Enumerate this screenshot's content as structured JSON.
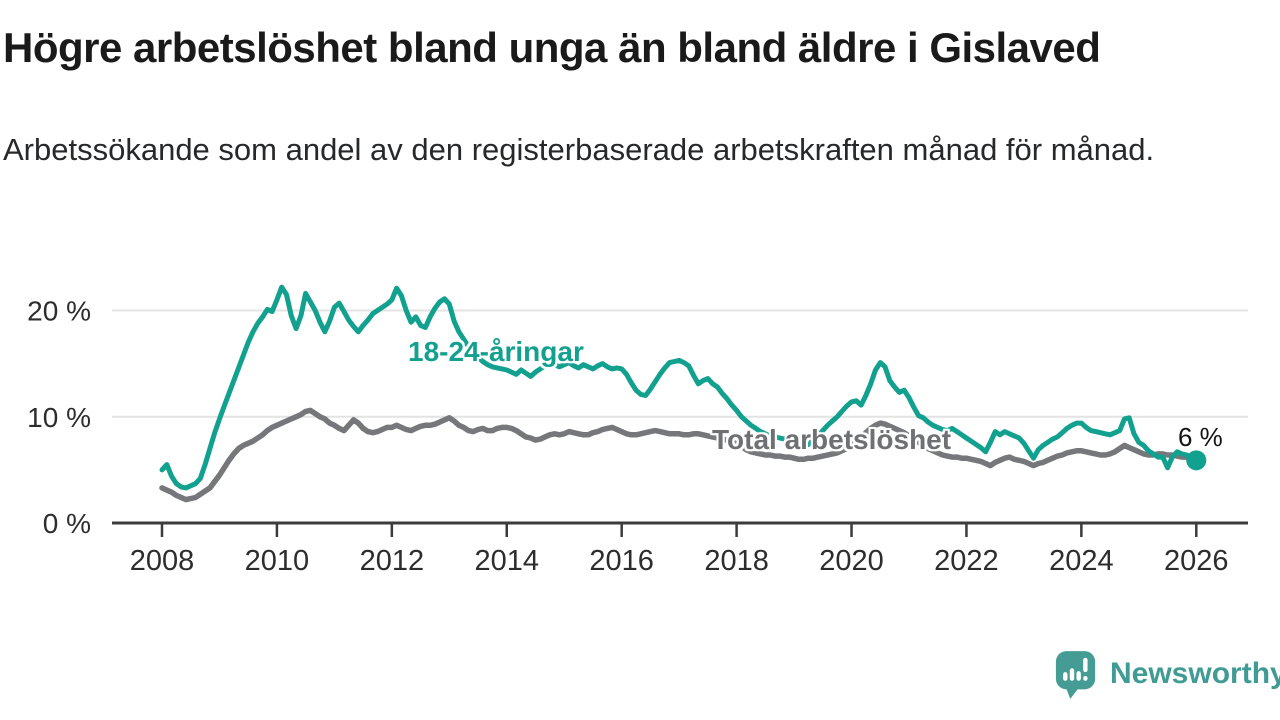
{
  "header": {
    "title": "Högre arbetslöshet bland unga än bland äldre i Gislaved",
    "subtitle": "Arbetssökande som andel av den registerbaserade arbetskraften månad för månad."
  },
  "footer": {
    "brand": "Newsworthy"
  },
  "colors": {
    "young_line": "#12a08f",
    "total_line": "#76777a",
    "grid": "#e3e3e3",
    "axis": "#3b3b3b",
    "tick_text": "#2d2d2d",
    "logo": "#459c95",
    "logo_text": "#3f9b94"
  },
  "chart_data": {
    "type": "line",
    "unit": "%",
    "x_start_year": 2008,
    "x_step_months": 1,
    "x_ticks": [
      {
        "year": 2008,
        "label": "2008"
      },
      {
        "year": 2010,
        "label": "2010"
      },
      {
        "year": 2012,
        "label": "2012"
      },
      {
        "year": 2014,
        "label": "2014"
      },
      {
        "year": 2016,
        "label": "2016"
      },
      {
        "year": 2018,
        "label": "2018"
      },
      {
        "year": 2020,
        "label": "2020"
      },
      {
        "year": 2022,
        "label": "2022"
      },
      {
        "year": 2024,
        "label": "2024"
      },
      {
        "year": 2026,
        "label": "2026"
      }
    ],
    "y_ticks": [
      {
        "value": 0,
        "label": "0 %"
      },
      {
        "value": 10,
        "label": "10 %"
      },
      {
        "value": 20,
        "label": "20 %"
      }
    ],
    "ylim": [
      0,
      22.5
    ],
    "grid": "horizontal-only",
    "end_annotation": {
      "label": "6 %",
      "value": 5.9
    },
    "series": [
      {
        "name": "18-24-åringar",
        "color": "#12a08f",
        "values": [
          5.0,
          5.5,
          4.4,
          3.7,
          3.4,
          3.3,
          3.5,
          3.7,
          4.2,
          5.5,
          7.0,
          8.5,
          9.8,
          11.0,
          12.2,
          13.4,
          14.6,
          15.8,
          17.0,
          18.0,
          18.8,
          19.4,
          20.1,
          19.9,
          21.0,
          22.2,
          21.5,
          19.5,
          18.3,
          19.5,
          21.6,
          20.8,
          20.0,
          18.9,
          18.0,
          19.0,
          20.3,
          20.7,
          19.9,
          19.1,
          18.5,
          18.0,
          18.6,
          19.1,
          19.7,
          20.0,
          20.3,
          20.6,
          21.0,
          22.1,
          21.4,
          20.0,
          18.9,
          19.4,
          18.6,
          18.4,
          19.4,
          20.2,
          20.8,
          21.1,
          20.6,
          19.0,
          18.0,
          17.3,
          16.6,
          16.0,
          15.6,
          15.2,
          14.9,
          14.7,
          14.6,
          14.5,
          14.4,
          14.2,
          14.0,
          14.4,
          14.1,
          13.8,
          14.2,
          14.5,
          14.8,
          15.0,
          14.9,
          14.7,
          14.9,
          15.1,
          14.8,
          14.6,
          14.9,
          14.7,
          14.5,
          14.8,
          15.0,
          14.7,
          14.5,
          14.6,
          14.5,
          14.0,
          13.2,
          12.5,
          12.1,
          12.0,
          12.6,
          13.3,
          14.0,
          14.6,
          15.1,
          15.2,
          15.3,
          15.1,
          14.8,
          13.9,
          13.1,
          13.4,
          13.6,
          13.1,
          12.8,
          12.2,
          11.7,
          11.1,
          10.6,
          10.0,
          9.6,
          9.2,
          8.9,
          8.6,
          8.4,
          8.2,
          8.1,
          8.0,
          7.9,
          7.8,
          7.6,
          7.4,
          7.2,
          7.4,
          7.8,
          8.2,
          8.7,
          9.2,
          9.6,
          10.0,
          10.5,
          11.0,
          11.4,
          11.5,
          11.1,
          12.0,
          13.1,
          14.4,
          15.1,
          14.7,
          13.4,
          12.8,
          12.3,
          12.5,
          11.8,
          10.9,
          10.1,
          9.9,
          9.5,
          9.2,
          9.0,
          8.8,
          8.7,
          8.9,
          8.6,
          8.3,
          8.0,
          7.7,
          7.4,
          7.1,
          6.7,
          7.6,
          8.6,
          8.3,
          8.6,
          8.4,
          8.2,
          8.0,
          7.5,
          6.8,
          6.1,
          6.9,
          7.3,
          7.6,
          7.9,
          8.1,
          8.5,
          8.9,
          9.2,
          9.4,
          9.4,
          9.0,
          8.7,
          8.6,
          8.5,
          8.4,
          8.3,
          8.5,
          8.7,
          9.8,
          9.9,
          8.4,
          7.6,
          7.3,
          6.8,
          6.5,
          6.2,
          6.2,
          5.2,
          6.2,
          6.7,
          6.5,
          6.4,
          6.1,
          5.9
        ]
      },
      {
        "name": "Total arbetslöshet",
        "color": "#76777a",
        "values": [
          3.3,
          3.1,
          2.9,
          2.6,
          2.4,
          2.2,
          2.3,
          2.4,
          2.7,
          3.0,
          3.3,
          3.9,
          4.5,
          5.2,
          5.9,
          6.5,
          7.0,
          7.3,
          7.5,
          7.7,
          8.0,
          8.3,
          8.7,
          9.0,
          9.2,
          9.4,
          9.6,
          9.8,
          10.0,
          10.2,
          10.5,
          10.6,
          10.3,
          10.0,
          9.8,
          9.4,
          9.2,
          8.9,
          8.7,
          9.2,
          9.7,
          9.4,
          8.9,
          8.6,
          8.5,
          8.6,
          8.8,
          9.0,
          9.0,
          9.2,
          9.0,
          8.8,
          8.7,
          8.9,
          9.1,
          9.2,
          9.2,
          9.3,
          9.5,
          9.7,
          9.9,
          9.6,
          9.2,
          9.0,
          8.7,
          8.6,
          8.8,
          8.9,
          8.7,
          8.7,
          8.9,
          9.0,
          9.0,
          8.9,
          8.7,
          8.4,
          8.1,
          8.0,
          7.8,
          7.9,
          8.1,
          8.3,
          8.4,
          8.3,
          8.4,
          8.6,
          8.5,
          8.4,
          8.3,
          8.3,
          8.5,
          8.6,
          8.8,
          8.9,
          9.0,
          8.8,
          8.6,
          8.4,
          8.3,
          8.3,
          8.4,
          8.5,
          8.6,
          8.7,
          8.6,
          8.5,
          8.4,
          8.4,
          8.4,
          8.3,
          8.3,
          8.4,
          8.4,
          8.3,
          8.2,
          8.1,
          8.0,
          7.9,
          7.8,
          7.6,
          7.5,
          7.2,
          6.9,
          6.7,
          6.6,
          6.5,
          6.4,
          6.4,
          6.3,
          6.3,
          6.2,
          6.2,
          6.1,
          6.0,
          6.0,
          6.1,
          6.1,
          6.2,
          6.3,
          6.4,
          6.5,
          6.6,
          6.8,
          7.0,
          7.3,
          7.6,
          8.0,
          8.5,
          8.9,
          9.2,
          9.4,
          9.3,
          9.1,
          8.9,
          8.7,
          8.5,
          8.2,
          7.9,
          7.6,
          7.3,
          7.0,
          6.8,
          6.6,
          6.4,
          6.3,
          6.2,
          6.2,
          6.1,
          6.1,
          6.0,
          5.9,
          5.8,
          5.6,
          5.4,
          5.7,
          5.9,
          6.1,
          6.2,
          6.0,
          5.9,
          5.8,
          5.6,
          5.4,
          5.6,
          5.7,
          5.9,
          6.1,
          6.3,
          6.4,
          6.6,
          6.7,
          6.8,
          6.8,
          6.7,
          6.6,
          6.5,
          6.4,
          6.4,
          6.5,
          6.7,
          7.0,
          7.3,
          7.1,
          6.9,
          6.7,
          6.5,
          6.4,
          6.4,
          6.5,
          6.5,
          6.4,
          6.4,
          6.3,
          6.2,
          6.2,
          6.2,
          6.2
        ]
      }
    ]
  }
}
